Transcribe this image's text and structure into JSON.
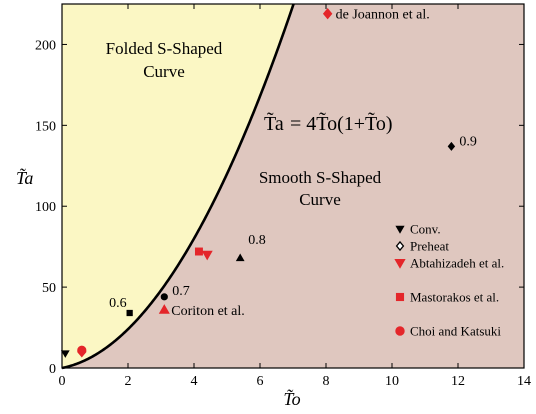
{
  "chart_data": {
    "type": "scatter",
    "xlabel": "T̃o",
    "ylabel": "T̃a",
    "xlim": [
      0,
      14
    ],
    "ylim": [
      0,
      225
    ],
    "x_ticks": [
      0,
      2,
      4,
      6,
      8,
      10,
      12,
      14
    ],
    "y_ticks": [
      0,
      50,
      100,
      150,
      200
    ],
    "grid": false,
    "legend_position": "right",
    "colors": {
      "folded_region": "#fbf7c4",
      "smooth_region": "#dfc7bf",
      "black_markers": "#000000",
      "red_markers": "#e4262a",
      "curve": "#000000"
    },
    "boundary_curve": {
      "equation_lhs": "T̃a",
      "equation_rhs": "= 4T̃o(1+T̃o)",
      "function": "4*x*(1+x)"
    },
    "regions": [
      {
        "lines": [
          "Folded S-Shaped",
          "Curve"
        ]
      },
      {
        "lines": [
          "Smooth S-Shaped",
          "Curve"
        ]
      }
    ],
    "legend": [
      {
        "label": "Conv.",
        "marker": "triangle-down",
        "color": "#000000",
        "filled": true
      },
      {
        "label": "Preheat",
        "marker": "diamond",
        "color": "#000000",
        "filled": false
      },
      {
        "label": "Abtahizadeh et al.",
        "marker": "triangle-down",
        "color": "#e4262a",
        "filled": true
      },
      {
        "label": "Mastorakos et al.",
        "marker": "square",
        "color": "#e4262a",
        "filled": true
      },
      {
        "label": "Choi and Katsuki",
        "marker": "circle",
        "color": "#e4262a",
        "filled": true
      }
    ],
    "series": [
      {
        "marker": "triangle-down",
        "color": "#000000",
        "points": [
          {
            "x": 0.1,
            "y": 9
          }
        ]
      },
      {
        "marker": "diamond",
        "color": "#000000",
        "points": [
          {
            "x": 11.8,
            "y": 137,
            "label": "0.9"
          }
        ]
      },
      {
        "marker": "triangle-up",
        "color": "#000000",
        "points": [
          {
            "x": 5.4,
            "y": 68,
            "label": "0.8"
          }
        ]
      },
      {
        "marker": "circle",
        "color": "#000000",
        "points": [
          {
            "x": 3.1,
            "y": 44,
            "label": "0.7"
          }
        ]
      },
      {
        "marker": "square",
        "color": "#000000",
        "points": [
          {
            "x": 2.05,
            "y": 34,
            "label": "0.6"
          }
        ]
      },
      {
        "marker": "diamond",
        "color": "#e4262a",
        "points": [
          {
            "x": 8.05,
            "y": 219,
            "label": "de Joannon et al."
          }
        ]
      },
      {
        "marker": "triangle-down",
        "color": "#e4262a",
        "points": [
          {
            "x": 4.4,
            "y": 70
          }
        ]
      },
      {
        "marker": "square",
        "color": "#e4262a",
        "points": [
          {
            "x": 4.15,
            "y": 72
          }
        ]
      },
      {
        "marker": "triangle-up",
        "color": "#e4262a",
        "points": [
          {
            "x": 3.1,
            "y": 36,
            "label": "Coriton et al."
          }
        ]
      },
      {
        "marker": "circle",
        "color": "#e4262a",
        "points": [
          {
            "x": 0.6,
            "y": 11
          }
        ]
      },
      {
        "marker": "diamond",
        "color": "#e4262a",
        "points": [
          {
            "x": 0.6,
            "y": 10
          }
        ]
      }
    ]
  }
}
